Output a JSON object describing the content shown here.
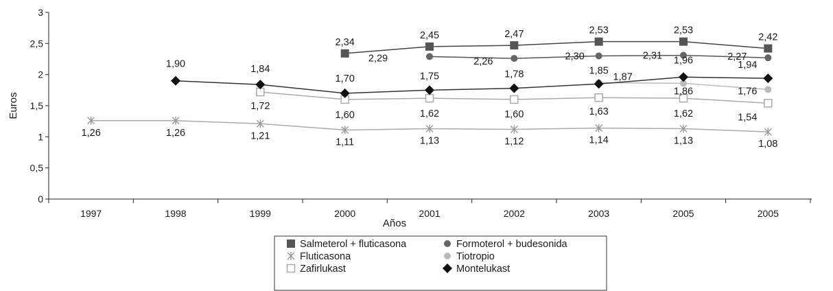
{
  "chart_data": {
    "type": "line",
    "title": "",
    "xlabel": "Años",
    "ylabel": "Euros",
    "ylim": [
      0,
      3
    ],
    "yticks": [
      "0",
      "0,5",
      "1",
      "1,5",
      "2",
      "2,5",
      "3"
    ],
    "categories": [
      "1997",
      "1998",
      "1999",
      "2000",
      "2001",
      "2002",
      "2003",
      "2005",
      "2005"
    ],
    "grid": false,
    "legend_position": "bottom",
    "series": [
      {
        "name": "Salmeterol + fluticasona",
        "marker": "filled-square",
        "line_color": "#444444",
        "marker_color": "#555555",
        "values": [
          null,
          null,
          null,
          2.34,
          2.45,
          2.47,
          2.53,
          2.53,
          2.42
        ],
        "labels": [
          null,
          null,
          null,
          "2,34",
          "2,45",
          "2,47",
          "2,53",
          "2,53",
          "2,42"
        ]
      },
      {
        "name": "Formoterol + budesonida",
        "marker": "filled-circle",
        "line_color": "#555555",
        "marker_color": "#666666",
        "values": [
          null,
          null,
          null,
          null,
          2.29,
          2.26,
          2.3,
          2.31,
          2.27
        ],
        "labels": [
          null,
          null,
          null,
          null,
          "2,29",
          "2,26",
          "2,30",
          "2,31",
          "2,27"
        ]
      },
      {
        "name": "Fluticasona",
        "marker": "asterisk",
        "line_color": "#aaaaaa",
        "marker_color": "#999999",
        "values": [
          1.26,
          1.26,
          1.21,
          1.11,
          1.13,
          1.12,
          1.14,
          1.13,
          1.08
        ],
        "labels": [
          "1,26",
          "1,26",
          "1,21",
          "1,11",
          "1,13",
          "1,12",
          "1,14",
          "1,13",
          "1,08"
        ]
      },
      {
        "name": "Tiotropio",
        "marker": "light-circle",
        "line_color": "#bbbbbb",
        "marker_color": "#bbbbbb",
        "values": [
          null,
          null,
          null,
          null,
          null,
          null,
          1.87,
          1.86,
          1.76
        ],
        "labels": [
          null,
          null,
          null,
          null,
          null,
          null,
          "1,87",
          "1,86",
          "1,76"
        ]
      },
      {
        "name": "Zafirlukast",
        "marker": "open-square",
        "line_color": "#aaaaaa",
        "marker_color": "#aaaaaa",
        "values": [
          null,
          null,
          1.72,
          1.6,
          1.62,
          1.6,
          1.63,
          1.62,
          1.54
        ],
        "labels": [
          null,
          null,
          "1,72",
          "1,60",
          "1,62",
          "1,60",
          "1,63",
          "1,62",
          "1,54"
        ]
      },
      {
        "name": "Montelukast",
        "marker": "diamond",
        "line_color": "#333333",
        "marker_color": "#111111",
        "values": [
          null,
          1.9,
          1.84,
          1.7,
          1.75,
          1.78,
          1.85,
          1.96,
          1.94
        ],
        "labels": [
          null,
          "1,90",
          "1,84",
          "1,70",
          "1,75",
          "1,78",
          "1,85",
          "1,96",
          "1,94"
        ]
      }
    ]
  },
  "legend": {
    "rows": [
      [
        "Salmeterol + fluticasona",
        "Formoterol + budesonida"
      ],
      [
        "Fluticasona",
        "Tiotropio"
      ],
      [
        "Zafirlukast",
        "Montelukast"
      ]
    ]
  }
}
